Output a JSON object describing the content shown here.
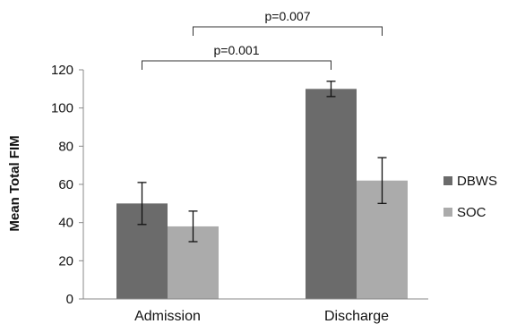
{
  "chart_data": {
    "type": "bar",
    "categories": [
      "Admission",
      "Discharge"
    ],
    "series": [
      {
        "name": "DBWS",
        "values": [
          50,
          110
        ],
        "errors": [
          11,
          4
        ],
        "color": "#6b6b6b"
      },
      {
        "name": "SOC",
        "values": [
          38,
          62
        ],
        "errors": [
          8,
          12
        ],
        "color": "#ababab"
      }
    ],
    "ylabel": "Mean Total FIM",
    "ylim": [
      0,
      120
    ],
    "yticks": [
      0,
      20,
      40,
      60,
      80,
      100,
      120
    ],
    "grid": false,
    "legend": "right",
    "annotations": [
      {
        "text": "p=0.001",
        "from": {
          "category": 0,
          "series": 0
        },
        "to": {
          "category": 1,
          "series": 0
        },
        "level": 1
      },
      {
        "text": "p=0.007",
        "from": {
          "category": 0,
          "series": 1
        },
        "to": {
          "category": 1,
          "series": 1
        },
        "level": 2
      }
    ]
  }
}
